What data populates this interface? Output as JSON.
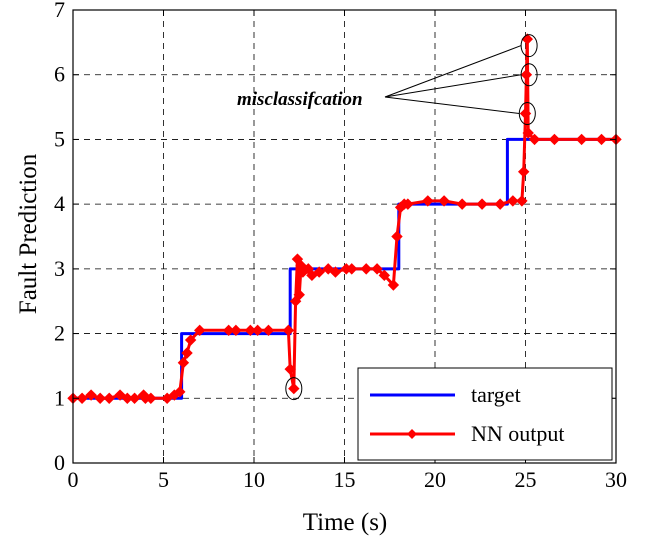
{
  "chart_data": {
    "type": "line",
    "title": "",
    "xlabel": "Time (s)",
    "ylabel": "Fault Prediction",
    "xlim": [
      0,
      30
    ],
    "ylim": [
      0,
      7
    ],
    "xticks": [
      0,
      5,
      10,
      15,
      20,
      25,
      30
    ],
    "yticks": [
      0,
      1,
      2,
      3,
      4,
      5,
      6,
      7
    ],
    "grid": true,
    "legend_position": "bottom-right",
    "series": [
      {
        "name": "target",
        "color": "#0000ff",
        "marker": "none",
        "x": [
          0,
          6,
          6,
          12,
          12,
          18,
          18,
          24,
          24,
          30
        ],
        "y": [
          1,
          1,
          2,
          2,
          3,
          3,
          4,
          4,
          5,
          5
        ]
      },
      {
        "name": "NN output",
        "color": "#ff0000",
        "marker": "diamond",
        "x": [
          0,
          0.5,
          1.0,
          1.5,
          2.0,
          2.6,
          3.0,
          3.4,
          3.9,
          4.0,
          4.3,
          5.2,
          5.6,
          5.9,
          6.1,
          6.3,
          6.5,
          7.0,
          8.6,
          9.0,
          9.8,
          10.2,
          10.8,
          11.9,
          12.0,
          12.2,
          12.3,
          12.4,
          12.5,
          12.6,
          12.7,
          13.0,
          13.2,
          13.6,
          14.1,
          14.5,
          15.1,
          15.4,
          16.2,
          16.8,
          17.2,
          17.7,
          17.9,
          18.1,
          18.3,
          18.5,
          19.6,
          20.5,
          21.5,
          22.6,
          23.6,
          24.3,
          24.8,
          24.9,
          25.0,
          25.05,
          25.1,
          25.15,
          25.5,
          26.6,
          28.1,
          29.2,
          30.0
        ],
        "y": [
          1.0,
          1.0,
          1.05,
          1.0,
          1.0,
          1.05,
          1.0,
          1.0,
          1.05,
          1.0,
          1.0,
          1.0,
          1.05,
          1.1,
          1.55,
          1.7,
          1.9,
          2.05,
          2.05,
          2.05,
          2.05,
          2.05,
          2.05,
          2.05,
          1.45,
          1.15,
          2.5,
          3.15,
          2.6,
          3.05,
          2.95,
          3.0,
          2.9,
          2.95,
          3.0,
          2.95,
          3.0,
          3.0,
          3.0,
          3.0,
          2.9,
          2.75,
          3.5,
          3.95,
          4.0,
          4.0,
          4.05,
          4.05,
          4.0,
          4.0,
          4.0,
          4.05,
          4.05,
          4.5,
          5.4,
          6.0,
          6.55,
          5.1,
          5.0,
          5.0,
          5.0,
          5.0,
          5.0
        ]
      }
    ],
    "annotation": {
      "text": "misclassifcation",
      "targets": [
        {
          "x": 25.2,
          "y": 6.45
        },
        {
          "x": 25.2,
          "y": 6.0
        },
        {
          "x": 25.1,
          "y": 5.4
        }
      ],
      "circles": [
        {
          "x": 25.2,
          "y": 6.45
        },
        {
          "x": 25.2,
          "y": 6.0
        },
        {
          "x": 25.1,
          "y": 5.4
        },
        {
          "x": 12.2,
          "y": 1.15
        }
      ]
    }
  }
}
